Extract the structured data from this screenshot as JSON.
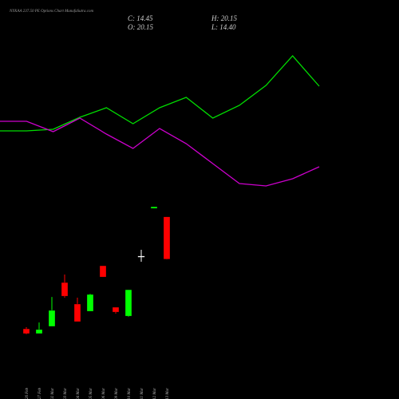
{
  "chart_data": [
    {
      "type": "candlestick",
      "title": "NYKAA 237.50 PE Options Chart MunafaSutra.com",
      "ohlc": [
        "C: 14.45",
        "H: 20.15",
        "O: 20.15",
        "L: 14.40"
      ],
      "categories": [
        "26 Feb",
        "27 Feb",
        "02 Mar",
        "03 Mar",
        "04 Mar",
        "05 Mar",
        "06 Mar",
        "09 Mar",
        "10 Mar",
        "11 Mar",
        "12 Mar",
        "13 Mar"
      ],
      "open": [
        5.05,
        4.41,
        5.38,
        11.29,
        8.39,
        7.42,
        13.55,
        7.96,
        6.77,
        14.84,
        21.29,
        20.15
      ],
      "high": [
        5.27,
        5.91,
        9.35,
        12.37,
        9.25,
        9.78,
        13.55,
        7.96,
        10.32,
        15.7,
        21.51,
        20.15
      ],
      "low": [
        4.3,
        4.41,
        5.38,
        9.25,
        6.02,
        7.42,
        12.04,
        7.1,
        6.67,
        14.09,
        21.29,
        14.4
      ],
      "close": [
        4.41,
        4.95,
        7.53,
        9.46,
        6.02,
        9.68,
        12.04,
        7.31,
        10.32,
        14.84,
        21.51,
        14.45
      ],
      "up_color": "#00ff00",
      "down_color": "#ff0000",
      "flat_color": "#ffffff",
      "ylim": [
        0,
        44
      ]
    },
    {
      "type": "line",
      "series": [
        {
          "color": "#00dd00",
          "values": [
            86,
            86,
            88,
            103,
            115,
            95,
            115,
            128,
            102,
            118,
            143,
            180,
            142
          ]
        },
        {
          "color": "#cc00cc",
          "values": [
            98,
            98,
            85,
            102,
            82,
            64,
            89,
            70,
            45,
            20,
            17,
            26,
            41
          ]
        }
      ],
      "ylim": [
        0,
        200
      ]
    }
  ]
}
